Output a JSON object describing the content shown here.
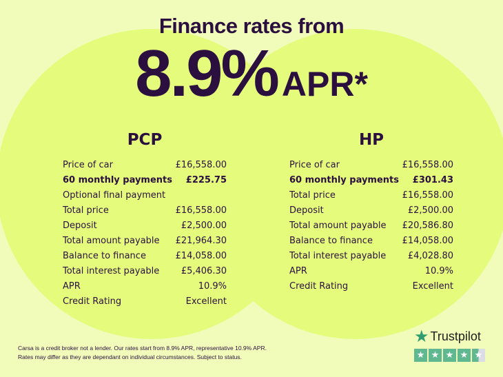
{
  "header": {
    "title": "Finance rates from",
    "rate": "8.9%",
    "rate_suffix": "APR*"
  },
  "colors": {
    "background": "#f1fbba",
    "circle": "#e5fb7c",
    "text": "#2a0f3f",
    "trustpilot": "#5fb88f"
  },
  "pcp": {
    "title": "PCP",
    "rows": [
      {
        "label": "Price of car",
        "value": "£16,558.00"
      },
      {
        "label": "60 monthly payments",
        "value": "£225.75",
        "bold": true
      },
      {
        "label": "Optional final payment",
        "value": ""
      },
      {
        "label": "Total price",
        "value": "£16,558.00"
      },
      {
        "label": "Deposit",
        "value": "£2,500.00"
      },
      {
        "label": "Total amount payable",
        "value": "£21,964.30"
      },
      {
        "label": "Balance to finance",
        "value": "£14,058.00"
      },
      {
        "label": "Total interest payable",
        "value": "£5,406.30"
      },
      {
        "label": "APR",
        "value": "10.9%"
      },
      {
        "label": "Credit Rating",
        "value": "Excellent"
      }
    ]
  },
  "hp": {
    "title": "HP",
    "rows": [
      {
        "label": "Price of car",
        "value": "£16,558.00"
      },
      {
        "label": "60 monthly payments",
        "value": "£301.43",
        "bold": true
      },
      {
        "label": "Total price",
        "value": "£16,558.00"
      },
      {
        "label": "Deposit",
        "value": "£2,500.00"
      },
      {
        "label": "Total amount payable",
        "value": "£20,586.80"
      },
      {
        "label": "Balance to finance",
        "value": "£14,058.00"
      },
      {
        "label": "Total interest payable",
        "value": "£4,028.80"
      },
      {
        "label": "APR",
        "value": "10.9%"
      },
      {
        "label": "Credit Rating",
        "value": "Excellent"
      }
    ]
  },
  "disclaimer": {
    "line1": "Carsa is a credit broker not a lender. Our rates start from 8.9% APR, representative 10.9% APR.",
    "line2": "Rates may differ as they are dependant on individual circumstances. Subject to status."
  },
  "trustpilot": {
    "name": "Trustpilot",
    "icon": "star-icon",
    "rating_stars": 4.5
  }
}
